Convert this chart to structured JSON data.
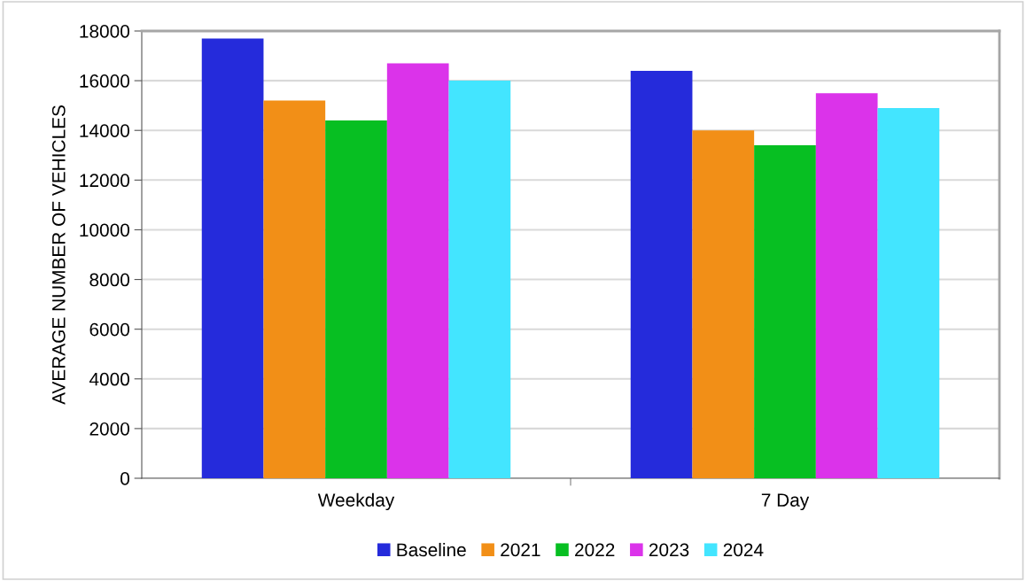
{
  "chart_data": {
    "type": "bar",
    "ylabel": "AVERAGE NUMBER OF VEHICLES",
    "categories": [
      "Weekday",
      "7 Day"
    ],
    "series": [
      {
        "name": "Baseline",
        "color": "#252bdb",
        "values": [
          17700,
          16400
        ]
      },
      {
        "name": "2021",
        "color": "#f28f17",
        "values": [
          15200,
          14000
        ]
      },
      {
        "name": "2022",
        "color": "#07bf22",
        "values": [
          14400,
          13400
        ]
      },
      {
        "name": "2023",
        "color": "#db33ea",
        "values": [
          16700,
          15500
        ]
      },
      {
        "name": "2024",
        "color": "#43e5ff",
        "values": [
          16000,
          14900
        ]
      }
    ],
    "ylim": [
      0,
      18000
    ],
    "yticks": [
      0,
      2000,
      4000,
      6000,
      8000,
      10000,
      12000,
      14000,
      16000,
      18000
    ],
    "grid": "y",
    "legend": "bottom"
  }
}
